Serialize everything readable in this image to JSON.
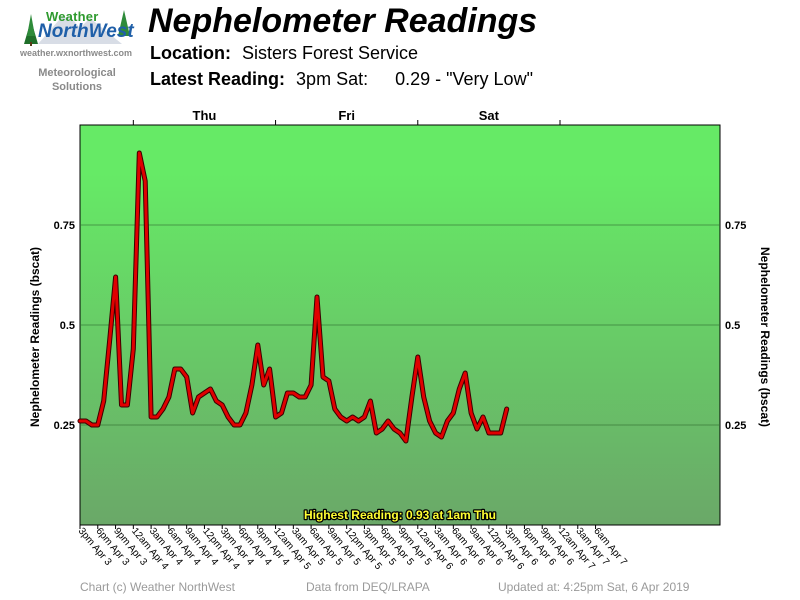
{
  "logo": {
    "brand_top": "Weather",
    "brand_main": "NorthWest",
    "url": "weather.wxnorthwest.com",
    "tagline_1": "Meteorological",
    "tagline_2": "Solutions"
  },
  "title": "Nephelometer Readings",
  "location": {
    "label": "Location:",
    "value": "Sisters Forest Service"
  },
  "latest": {
    "label": "Latest Reading:",
    "time": "3pm Sat:",
    "value": "0.29 - \"Very Low\""
  },
  "footer": {
    "credit": "Chart (c) Weather NorthWest",
    "source": "Data from DEQ/LRAPA",
    "updated": "Updated at: 4:25pm Sat, 6 Apr 2019"
  },
  "colors": {
    "line": "#e00000",
    "line_shadow": "#3a0000",
    "top_green": "#66ea66",
    "bottom_green": "#6aa868",
    "highlight_text": "#ffff33"
  },
  "chart_data": {
    "type": "line",
    "ylabel": "Nephelometer Readings (bscat)",
    "ylim": [
      0.0,
      1.0
    ],
    "yticks": [
      {
        "value": 0.25,
        "label": "0.25"
      },
      {
        "value": 0.5,
        "label": "0.5"
      },
      {
        "value": 0.75,
        "label": "0.75"
      }
    ],
    "xlim": [
      0,
      108
    ],
    "x_unit": "hours from 3pm Apr 3",
    "xticks": [
      {
        "x": 0,
        "label": "3pm Apr 3"
      },
      {
        "x": 3,
        "label": "6pm Apr 3"
      },
      {
        "x": 6,
        "label": "9pm Apr 3"
      },
      {
        "x": 9,
        "label": "12am Apr 4"
      },
      {
        "x": 12,
        "label": "3am Apr 4"
      },
      {
        "x": 15,
        "label": "6am Apr 4"
      },
      {
        "x": 18,
        "label": "9am Apr 4"
      },
      {
        "x": 21,
        "label": "12pm Apr 4"
      },
      {
        "x": 24,
        "label": "3pm Apr 4"
      },
      {
        "x": 27,
        "label": "6pm Apr 4"
      },
      {
        "x": 30,
        "label": "9pm Apr 4"
      },
      {
        "x": 33,
        "label": "12am Apr 5"
      },
      {
        "x": 36,
        "label": "3am Apr 5"
      },
      {
        "x": 39,
        "label": "6am Apr 5"
      },
      {
        "x": 42,
        "label": "9am Apr 5"
      },
      {
        "x": 45,
        "label": "12pm Apr 5"
      },
      {
        "x": 48,
        "label": "3pm Apr 5"
      },
      {
        "x": 51,
        "label": "6pm Apr 5"
      },
      {
        "x": 54,
        "label": "9pm Apr 5"
      },
      {
        "x": 57,
        "label": "12am Apr 6"
      },
      {
        "x": 60,
        "label": "3am Apr 6"
      },
      {
        "x": 63,
        "label": "6am Apr 6"
      },
      {
        "x": 66,
        "label": "9am Apr 6"
      },
      {
        "x": 69,
        "label": "12pm Apr 6"
      },
      {
        "x": 72,
        "label": "3pm Apr 6"
      },
      {
        "x": 75,
        "label": "6pm Apr 6"
      },
      {
        "x": 78,
        "label": "9pm Apr 6"
      },
      {
        "x": 81,
        "label": "12am Apr 7"
      },
      {
        "x": 84,
        "label": "3am Apr 7"
      },
      {
        "x": 87,
        "label": "6am Apr 7"
      }
    ],
    "day_labels": [
      {
        "x": 21,
        "label": "Thu"
      },
      {
        "x": 45,
        "label": "Fri"
      },
      {
        "x": 69,
        "label": "Sat"
      }
    ],
    "day_boundaries": [
      9,
      33,
      57,
      81
    ],
    "highest_label": "Highest Reading: 0.93 at 1am Thu",
    "series": [
      {
        "x": [
          0,
          1,
          2,
          3,
          4,
          5,
          6,
          7,
          8,
          9,
          10,
          11,
          12,
          13,
          14,
          15,
          16,
          17,
          18,
          19,
          20,
          21,
          22,
          23,
          24,
          25,
          26,
          27,
          28,
          29,
          30,
          31,
          32,
          33,
          34,
          35,
          36,
          37,
          38,
          39,
          40,
          41,
          42,
          43,
          44,
          45,
          46,
          47,
          48,
          49,
          50,
          51,
          52,
          53,
          54,
          55,
          56,
          57,
          58,
          59,
          60,
          61,
          62,
          63,
          64,
          65,
          66,
          67,
          68,
          69,
          70,
          71,
          72
        ],
        "y": [
          0.26,
          0.26,
          0.25,
          0.25,
          0.31,
          0.46,
          0.62,
          0.3,
          0.3,
          0.44,
          0.93,
          0.86,
          0.27,
          0.27,
          0.29,
          0.32,
          0.39,
          0.39,
          0.37,
          0.28,
          0.32,
          0.33,
          0.34,
          0.31,
          0.3,
          0.27,
          0.25,
          0.25,
          0.28,
          0.35,
          0.45,
          0.35,
          0.39,
          0.27,
          0.28,
          0.33,
          0.33,
          0.32,
          0.32,
          0.35,
          0.57,
          0.37,
          0.36,
          0.29,
          0.27,
          0.26,
          0.27,
          0.26,
          0.27,
          0.31,
          0.23,
          0.24,
          0.26,
          0.24,
          0.23,
          0.21,
          0.32,
          0.42,
          0.32,
          0.26,
          0.23,
          0.22,
          0.26,
          0.28,
          0.34,
          0.38,
          0.28,
          0.24,
          0.27,
          0.23,
          0.23,
          0.23,
          0.29
        ]
      }
    ]
  }
}
